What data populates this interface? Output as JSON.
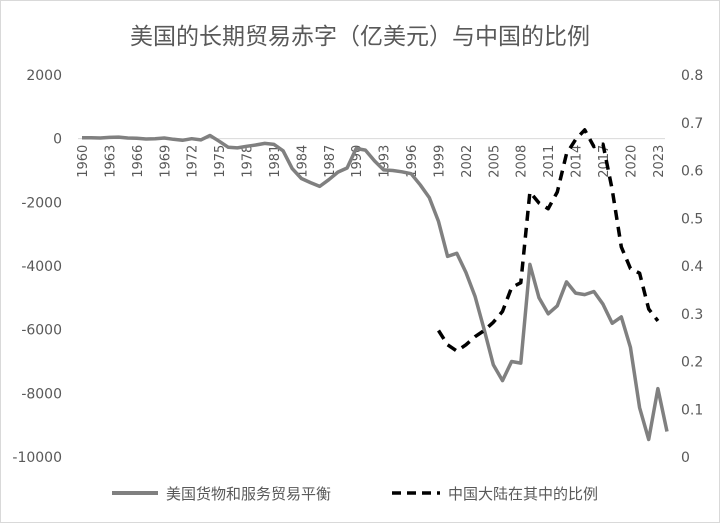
{
  "chart_data": {
    "type": "line",
    "title": "美国的长期贸易赤字（亿美元）与中国的比例",
    "x": [
      1960,
      1961,
      1962,
      1963,
      1964,
      1965,
      1966,
      1967,
      1968,
      1969,
      1970,
      1971,
      1972,
      1973,
      1974,
      1975,
      1976,
      1977,
      1978,
      1979,
      1980,
      1981,
      1982,
      1983,
      1984,
      1985,
      1986,
      1987,
      1988,
      1989,
      1990,
      1991,
      1992,
      1993,
      1994,
      1995,
      1996,
      1997,
      1998,
      1999,
      2000,
      2001,
      2002,
      2003,
      2004,
      2005,
      2006,
      2007,
      2008,
      2009,
      2010,
      2011,
      2012,
      2013,
      2014,
      2015,
      2016,
      2017,
      2018,
      2019,
      2020,
      2021,
      2022,
      2023,
      2024
    ],
    "x_tick_labels": [
      "1960",
      "1963",
      "1966",
      "1969",
      "1972",
      "1975",
      "1978",
      "1981",
      "1984",
      "1987",
      "1990",
      "1993",
      "1996",
      "1999",
      "2002",
      "2005",
      "2008",
      "2011",
      "2014",
      "2017",
      "2020",
      "2023"
    ],
    "y_left": {
      "ticks": [
        2000,
        0,
        -2000,
        -4000,
        -6000,
        -8000,
        -10000
      ],
      "tick_labels": [
        "2000",
        "0",
        "-2000",
        "-4000",
        "-6000",
        "-8000",
        "-10000"
      ],
      "ylim": [
        -10000,
        2000
      ]
    },
    "y_right": {
      "ticks": [
        0.8,
        0.7,
        0.6,
        0.5,
        0.4,
        0.3,
        0.2,
        0.1,
        0
      ],
      "tick_labels": [
        "0.8",
        "0.7",
        "0.6",
        "0.5",
        "0.4",
        "0.3",
        "0.2",
        "0.1",
        "0"
      ],
      "ylim": [
        0,
        0.8
      ]
    },
    "series": [
      {
        "name": "美国货物和服务贸易平衡",
        "axis": "left",
        "color": "#808080",
        "style": "solid",
        "values": [
          30,
          30,
          20,
          40,
          50,
          20,
          10,
          -10,
          0,
          20,
          -20,
          -50,
          0,
          -40,
          100,
          -80,
          -270,
          -290,
          -240,
          -200,
          -150,
          -180,
          -380,
          -940,
          -1250,
          -1380,
          -1500,
          -1290,
          -1050,
          -920,
          -310,
          -360,
          -700,
          -980,
          -1000,
          -1040,
          -1100,
          -1450,
          -1850,
          -2600,
          -3700,
          -3600,
          -4200,
          -4950,
          -6000,
          -7100,
          -7600,
          -7000,
          -7050,
          -3950,
          -5000,
          -5500,
          -5250,
          -4500,
          -4850,
          -4900,
          -4800,
          -5200,
          -5800,
          -5600,
          -6550,
          -8450,
          -9450,
          -7850,
          -9200
        ]
      },
      {
        "name": "中国大陆在其中的比例",
        "axis": "right",
        "color": "#000000",
        "style": "dashed",
        "values": [
          null,
          null,
          null,
          null,
          null,
          null,
          null,
          null,
          null,
          null,
          null,
          null,
          null,
          null,
          null,
          null,
          null,
          null,
          null,
          null,
          null,
          null,
          null,
          null,
          null,
          null,
          null,
          null,
          null,
          null,
          null,
          null,
          null,
          null,
          null,
          null,
          null,
          null,
          null,
          0.265,
          0.235,
          0.222,
          0.235,
          0.252,
          0.265,
          0.282,
          0.305,
          0.355,
          0.365,
          0.555,
          0.532,
          0.52,
          0.555,
          0.635,
          0.665,
          0.685,
          0.65,
          0.655,
          0.56,
          0.44,
          0.395,
          0.385,
          0.31,
          0.285,
          null
        ]
      }
    ],
    "legend": {
      "placement": "bottom"
    },
    "grid": false
  }
}
